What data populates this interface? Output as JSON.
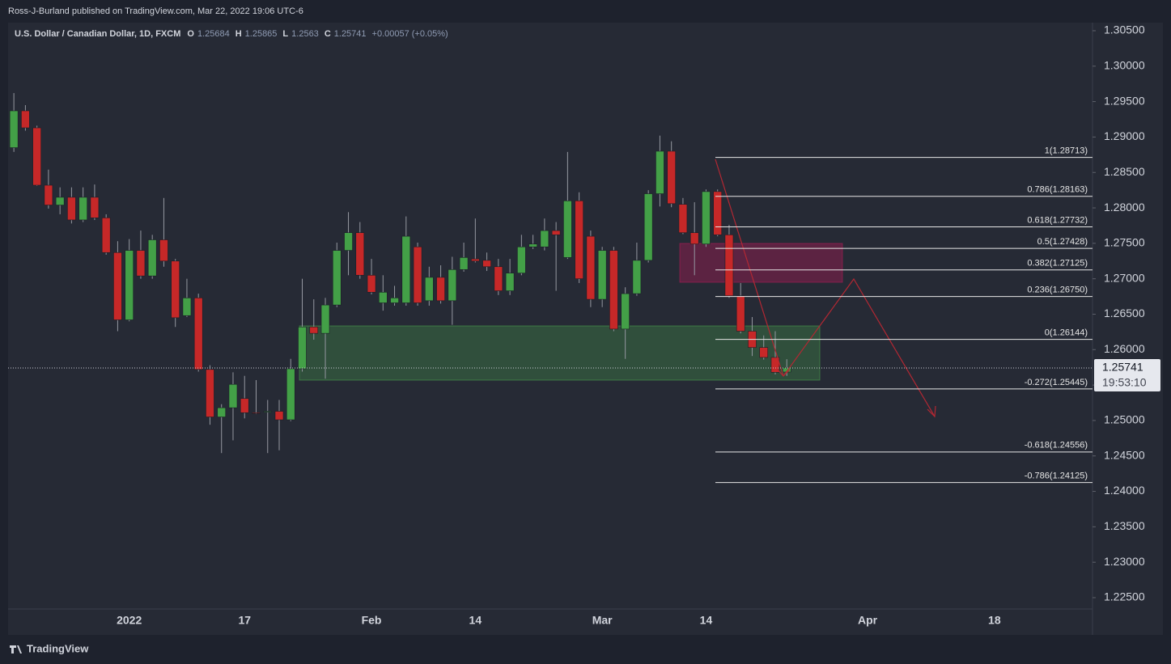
{
  "header": {
    "publisher": "Ross-J-Burland published on TradingView.com, Mar 22, 2022 19:06 UTC-6",
    "footer": "TradingView"
  },
  "chart_data": {
    "type": "candlestick",
    "title": "U.S. Dollar / Canadian Dollar, 1D, FXCM",
    "ohlc_labels": [
      "O",
      "H",
      "L",
      "C"
    ],
    "change": "+0.00057 (+0.05%)",
    "countdown": "19:53:10",
    "categories": [
      null,
      null,
      null,
      null,
      null,
      null,
      null,
      null,
      null,
      null,
      "2022",
      null,
      null,
      null,
      null,
      null,
      null,
      null,
      null,
      null,
      "17",
      null,
      null,
      null,
      null,
      null,
      null,
      null,
      null,
      null,
      null,
      "Feb",
      null,
      null,
      null,
      null,
      null,
      null,
      null,
      null,
      "14",
      null,
      null,
      null,
      null,
      null,
      null,
      null,
      null,
      null,
      null,
      "Mar",
      null,
      null,
      null,
      null,
      null,
      null,
      null,
      null,
      "14",
      null,
      null,
      null,
      null,
      null,
      null,
      null,
      null,
      null,
      null,
      null,
      null,
      null,
      "Apr",
      null,
      null,
      null,
      null,
      null,
      null,
      null,
      null,
      null,
      null,
      "18",
      null,
      null,
      null,
      null,
      null,
      null,
      null,
      null
    ],
    "open": [
      1.2885,
      1.2937,
      1.2913,
      1.2832,
      1.2804,
      1.2815,
      1.2783,
      1.2815,
      1.2786,
      1.2737,
      1.2642,
      1.274,
      1.2704,
      1.2755,
      1.2725,
      1.2648,
      1.2673,
      1.2572,
      1.2505,
      1.2518,
      1.2531,
      1.2511,
      1.2512,
      1.2513,
      1.2501,
      1.2573,
      1.2632,
      1.2623,
      1.2663,
      1.274,
      1.2765,
      1.2705,
      1.2666,
      1.2666,
      1.2666,
      1.2745,
      1.2669,
      1.2702,
      1.2669,
      1.2713,
      1.2728,
      1.2726,
      1.2717,
      1.2683,
      1.2708,
      1.2745,
      1.2745,
      1.2768,
      1.273,
      1.281,
      1.276,
      1.2671,
      1.274,
      1.2629,
      1.2679,
      1.2726,
      1.282,
      1.288,
      1.2805,
      1.2765,
      1.2749,
      1.2823,
      1.2762,
      1.2676,
      1.2626,
      1.2603,
      1.2589,
      1.25684,
      null,
      null,
      null,
      null,
      null,
      null,
      null,
      null,
      null,
      null,
      null,
      null,
      null,
      null,
      null,
      null,
      null,
      null,
      null,
      null,
      null,
      null,
      null,
      null,
      null,
      null
    ],
    "high": [
      1.2962,
      1.2945,
      1.2916,
      1.2854,
      1.2829,
      1.2829,
      1.2829,
      1.2833,
      1.2791,
      1.2753,
      1.2756,
      1.2768,
      1.2762,
      1.2814,
      1.2728,
      1.27,
      1.2679,
      1.2578,
      1.2523,
      1.2568,
      1.2563,
      1.2557,
      1.2529,
      1.2529,
      1.2587,
      1.27,
      1.2671,
      1.2673,
      1.2751,
      1.2794,
      1.278,
      1.2728,
      1.2705,
      1.269,
      1.2788,
      1.2751,
      1.2717,
      1.2719,
      1.2731,
      1.2751,
      1.2785,
      1.2737,
      1.2728,
      1.2728,
      1.2762,
      1.2762,
      1.2785,
      1.278,
      1.2879,
      1.2822,
      1.2768,
      1.2745,
      1.2745,
      1.2688,
      1.2751,
      1.2825,
      1.2902,
      1.2894,
      1.2814,
      1.2808,
      1.2826,
      1.2826,
      1.2776,
      1.2694,
      1.2646,
      1.262,
      1.2626,
      1.25865,
      null,
      null,
      null,
      null,
      null,
      null,
      null,
      null,
      null,
      null,
      null,
      null,
      null,
      null,
      null,
      null,
      null,
      null,
      null,
      null,
      null,
      null,
      null,
      null,
      null,
      null
    ],
    "low": [
      1.2879,
      1.2909,
      1.2831,
      1.2799,
      1.2791,
      1.2778,
      1.278,
      1.2783,
      1.2734,
      1.2626,
      1.264,
      1.27,
      1.27,
      1.2717,
      1.2632,
      1.2646,
      1.2569,
      1.2494,
      1.2454,
      1.2472,
      1.2503,
      1.2509,
      1.2454,
      1.2458,
      1.2499,
      1.2569,
      1.2614,
      1.2559,
      1.266,
      1.2705,
      1.27,
      1.2678,
      1.2655,
      1.2662,
      1.2662,
      1.2662,
      1.2662,
      1.2665,
      1.2635,
      1.271,
      1.2723,
      1.2711,
      1.2677,
      1.2677,
      1.2705,
      1.2742,
      1.274,
      1.2683,
      1.2728,
      1.2694,
      1.266,
      1.266,
      1.2626,
      1.2587,
      1.2676,
      1.2723,
      1.2802,
      1.2801,
      1.2763,
      1.2705,
      1.2745,
      1.276,
      1.2673,
      1.2623,
      1.2591,
      1.2586,
      1.2565,
      1.2563,
      null,
      null,
      null,
      null,
      null,
      null,
      null,
      null,
      null,
      null,
      null,
      null,
      null,
      null,
      null,
      null,
      null,
      null,
      null,
      null,
      null,
      null,
      null,
      null,
      null,
      null
    ],
    "close": [
      1.2937,
      1.2913,
      1.2832,
      1.2804,
      1.2815,
      1.2783,
      1.2815,
      1.2786,
      1.2737,
      1.2642,
      1.274,
      1.2704,
      1.2755,
      1.2725,
      1.2645,
      1.2673,
      1.2572,
      1.2505,
      1.2518,
      1.2551,
      1.2511,
      1.251,
      1.2513,
      1.2501,
      1.2573,
      1.2632,
      1.2623,
      1.2663,
      1.274,
      1.2765,
      1.2705,
      1.2681,
      1.2681,
      1.2673,
      1.276,
      1.2666,
      1.2702,
      1.2669,
      1.2713,
      1.273,
      1.2725,
      1.2717,
      1.2683,
      1.2708,
      1.2745,
      1.2749,
      1.2768,
      1.2762,
      1.281,
      1.27,
      1.2671,
      1.274,
      1.2629,
      1.2679,
      1.2726,
      1.282,
      1.288,
      1.2806,
      1.2765,
      1.2749,
      1.2823,
      1.2762,
      1.2676,
      1.2626,
      1.2603,
      1.2589,
      1.2568,
      1.25741,
      null,
      null,
      null,
      null,
      null,
      null,
      null,
      null,
      null,
      null,
      null,
      null,
      null,
      null,
      null,
      null,
      null,
      null,
      null,
      null,
      null,
      null,
      null,
      null,
      null,
      null
    ],
    "up_color": "#43a047",
    "down_color": "#c62828",
    "wick_color": "#9598a1",
    "ylim": [
      1.2234,
      1.30614
    ],
    "yticks": [
      {
        "value": 1.305,
        "label": "1.30500"
      },
      {
        "value": 1.3,
        "label": "1.30000"
      },
      {
        "value": 1.295,
        "label": "1.29500"
      },
      {
        "value": 1.29,
        "label": "1.29000"
      },
      {
        "value": 1.285,
        "label": "1.28500"
      },
      {
        "value": 1.28,
        "label": "1.28000"
      },
      {
        "value": 1.275,
        "label": "1.27500"
      },
      {
        "value": 1.27,
        "label": "1.27000"
      },
      {
        "value": 1.265,
        "label": "1.26500"
      },
      {
        "value": 1.26,
        "label": "1.26000"
      },
      {
        "value": 1.255,
        "label": "1.25500"
      },
      {
        "value": 1.25,
        "label": "1.25000"
      },
      {
        "value": 1.245,
        "label": "1.24500"
      },
      {
        "value": 1.24,
        "label": "1.24000"
      },
      {
        "value": 1.235,
        "label": "1.23500"
      },
      {
        "value": 1.23,
        "label": "1.23000"
      },
      {
        "value": 1.225,
        "label": "1.22500"
      }
    ],
    "fib_levels": [
      {
        "value": 1.28713,
        "label": "1(1.28713)"
      },
      {
        "value": 1.28163,
        "label": "0.786(1.28163)"
      },
      {
        "value": 1.27732,
        "label": "0.618(1.27732)"
      },
      {
        "value": 1.27428,
        "label": "0.5(1.27428)"
      },
      {
        "value": 1.27125,
        "label": "0.382(1.27125)"
      },
      {
        "value": 1.2675,
        "label": "0.236(1.26750)"
      },
      {
        "value": 1.26144,
        "label": "0(1.26144)"
      },
      {
        "value": 1.25445,
        "label": "-0.272(1.25445)"
      },
      {
        "value": 1.24556,
        "label": "-0.618(1.24556)"
      },
      {
        "value": 1.24125,
        "label": "-0.786(1.24125)"
      }
    ],
    "fib_color": "#e6e6e6"
  }
}
